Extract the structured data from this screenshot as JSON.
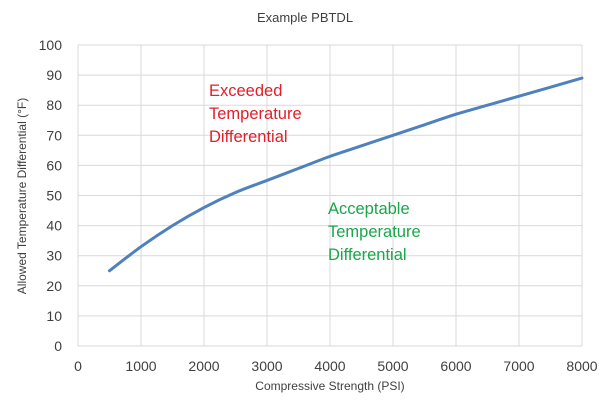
{
  "chart_data": {
    "type": "line",
    "title": "Example PBTDL",
    "xlabel": "Compressive Strength (PSI)",
    "ylabel": "Allowed Temperature Differential (°F)",
    "xlim": [
      0,
      8000
    ],
    "ylim": [
      0,
      100
    ],
    "xticks": [
      "0",
      "1000",
      "2000",
      "3000",
      "4000",
      "5000",
      "6000",
      "7000",
      "8000"
    ],
    "yticks": [
      "0",
      "10",
      "20",
      "30",
      "40",
      "50",
      "60",
      "70",
      "80",
      "90",
      "100"
    ],
    "grid": true,
    "series": [
      {
        "color": "#4f81bd",
        "x": [
          500,
          1000,
          1500,
          2000,
          2500,
          3000,
          3500,
          4000,
          4500,
          5000,
          5500,
          6000,
          6500,
          7000,
          7500,
          8000
        ],
        "y": [
          25,
          33,
          40,
          46,
          51,
          55,
          59,
          63,
          66.5,
          70,
          73.5,
          77,
          80,
          83,
          86,
          89
        ]
      }
    ],
    "annotations": [
      {
        "lines": [
          "Exceeded",
          "Temperature",
          "Differential"
        ],
        "color": "#e0202a"
      },
      {
        "lines": [
          "Acceptable",
          "Temperature",
          "Differential"
        ],
        "color": "#1aa64a"
      }
    ]
  }
}
